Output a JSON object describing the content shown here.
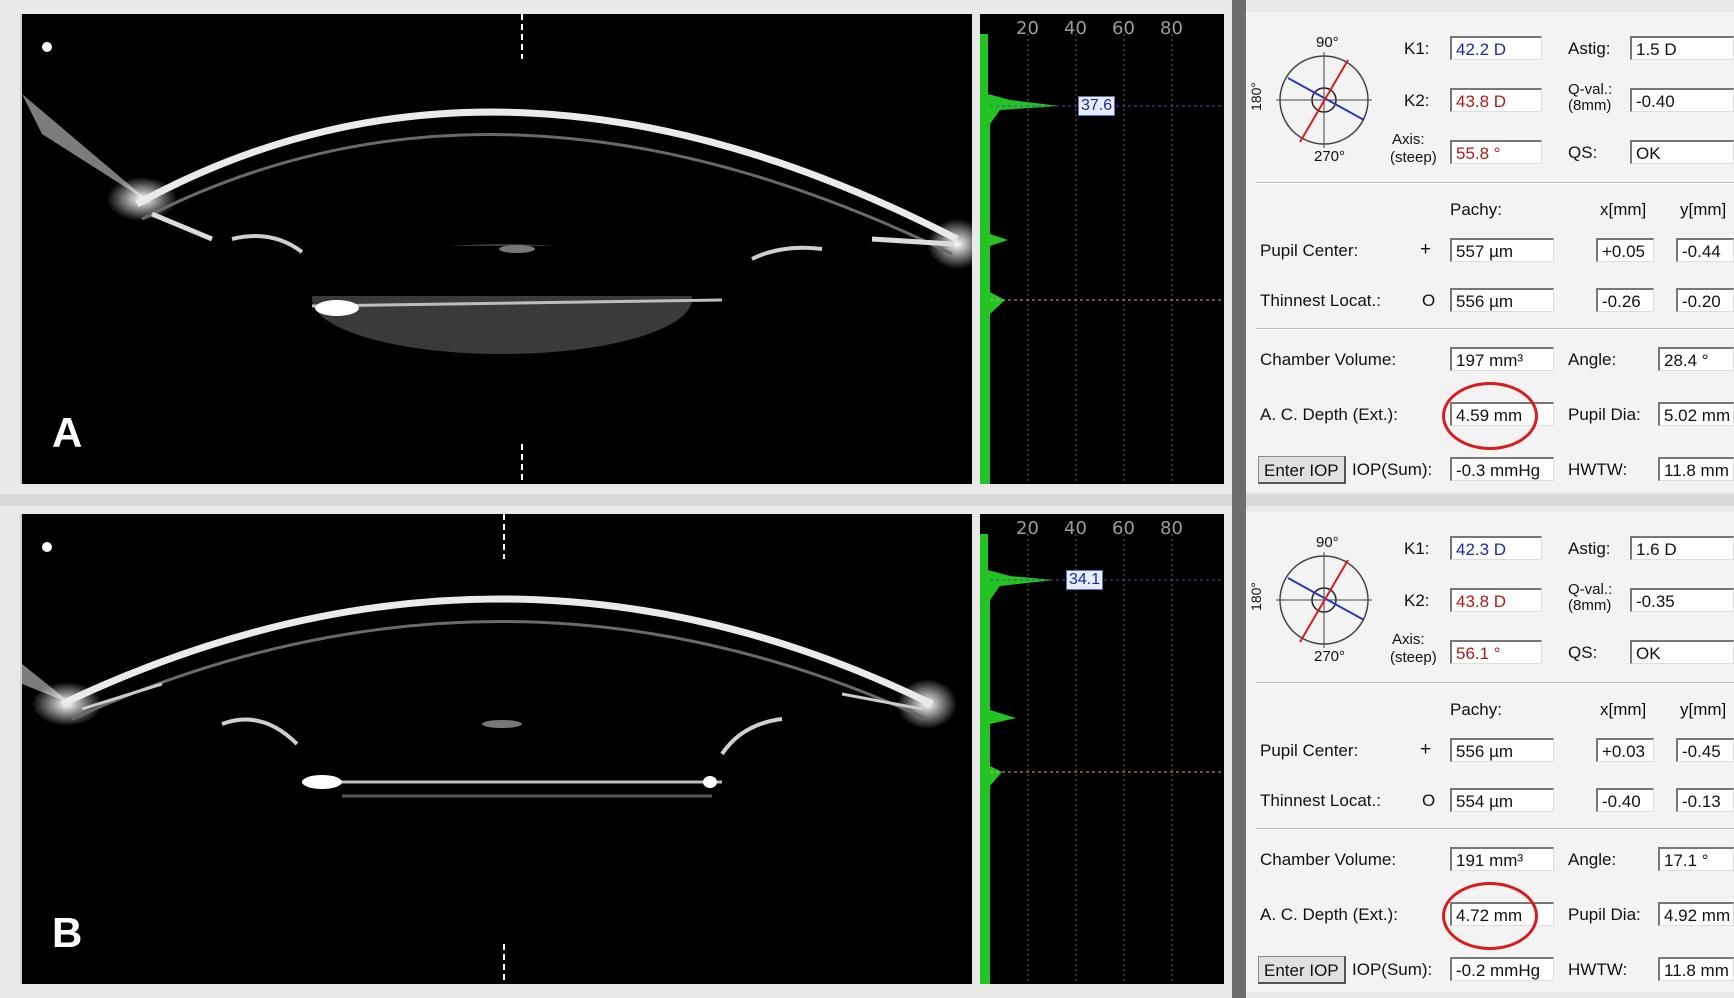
{
  "panels": [
    {
      "label": "A",
      "histogram": {
        "ticks": [
          "20",
          "40",
          "60",
          "80"
        ],
        "peak_value": "37.6"
      },
      "keratometry": {
        "k1_label": "K1:",
        "k1": "42.2 D",
        "k2_label": "K2:",
        "k2": "43.8 D",
        "axis_label": "Axis:",
        "axis_sub": "(steep)",
        "axis": "55.8 °",
        "astig_label": "Astig:",
        "astig": "1.5 D",
        "qval_label": "Q-val.:",
        "qval_sub": "(8mm)",
        "qval": "-0.40",
        "qs_label": "QS:",
        "qs": "OK",
        "dial_top": "90°",
        "dial_left": "180°",
        "dial_bottom": "270°"
      },
      "pachy": {
        "header_pachy": "Pachy:",
        "header_x": "x[mm]",
        "header_y": "y[mm]",
        "pupil_label": "Pupil Center:",
        "pupil_symbol": "+",
        "pupil_pachy": "557 µm",
        "pupil_x": "+0.05",
        "pupil_y": "-0.44",
        "thin_label": "Thinnest Locat.:",
        "thin_symbol": "O",
        "thin_pachy": "556 µm",
        "thin_x": "-0.26",
        "thin_y": "-0.20"
      },
      "chamber": {
        "volume_label": "Chamber Volume:",
        "volume": "197 mm³",
        "angle_label": "Angle:",
        "angle": "28.4 °",
        "acd_label": "A. C. Depth (Ext.):",
        "acd": "4.59 mm",
        "pupildia_label": "Pupil Dia:",
        "pupildia": "5.02 mm",
        "enter_iop": "Enter IOP",
        "iop_label": "IOP(Sum):",
        "iop": "-0.3 mmHg",
        "hwtw_label": "HWTW:",
        "hwtw": "11.8 mm"
      }
    },
    {
      "label": "B",
      "histogram": {
        "ticks": [
          "20",
          "40",
          "60",
          "80"
        ],
        "peak_value": "34.1"
      },
      "keratometry": {
        "k1_label": "K1:",
        "k1": "42.3 D",
        "k2_label": "K2:",
        "k2": "43.8 D",
        "axis_label": "Axis:",
        "axis_sub": "(steep)",
        "axis": "56.1 °",
        "astig_label": "Astig:",
        "astig": "1.6 D",
        "qval_label": "Q-val.:",
        "qval_sub": "(8mm)",
        "qval": "-0.35",
        "qs_label": "QS:",
        "qs": "OK",
        "dial_top": "90°",
        "dial_left": "180°",
        "dial_bottom": "270°"
      },
      "pachy": {
        "header_pachy": "Pachy:",
        "header_x": "x[mm]",
        "header_y": "y[mm]",
        "pupil_label": "Pupil Center:",
        "pupil_symbol": "+",
        "pupil_pachy": "556 µm",
        "pupil_x": "+0.03",
        "pupil_y": "-0.45",
        "thin_label": "Thinnest Locat.:",
        "thin_symbol": "O",
        "thin_pachy": "554 µm",
        "thin_x": "-0.40",
        "thin_y": "-0.13"
      },
      "chamber": {
        "volume_label": "Chamber Volume:",
        "volume": "191 mm³",
        "angle_label": "Angle:",
        "angle": "17.1 °",
        "acd_label": "A. C. Depth (Ext.):",
        "acd": "4.72 mm",
        "pupildia_label": "Pupil Dia:",
        "pupildia": "4.92 mm",
        "enter_iop": "Enter IOP",
        "iop_label": "IOP(Sum):",
        "iop": "-0.2 mmHg",
        "hwtw_label": "HWTW:",
        "hwtw": "11.8 mm"
      }
    }
  ],
  "colors": {
    "histogram": "#22c322",
    "highlight_circle": "#d81c1c",
    "k1_text": "#1a2aa0",
    "k2_text": "#b01a1a"
  }
}
